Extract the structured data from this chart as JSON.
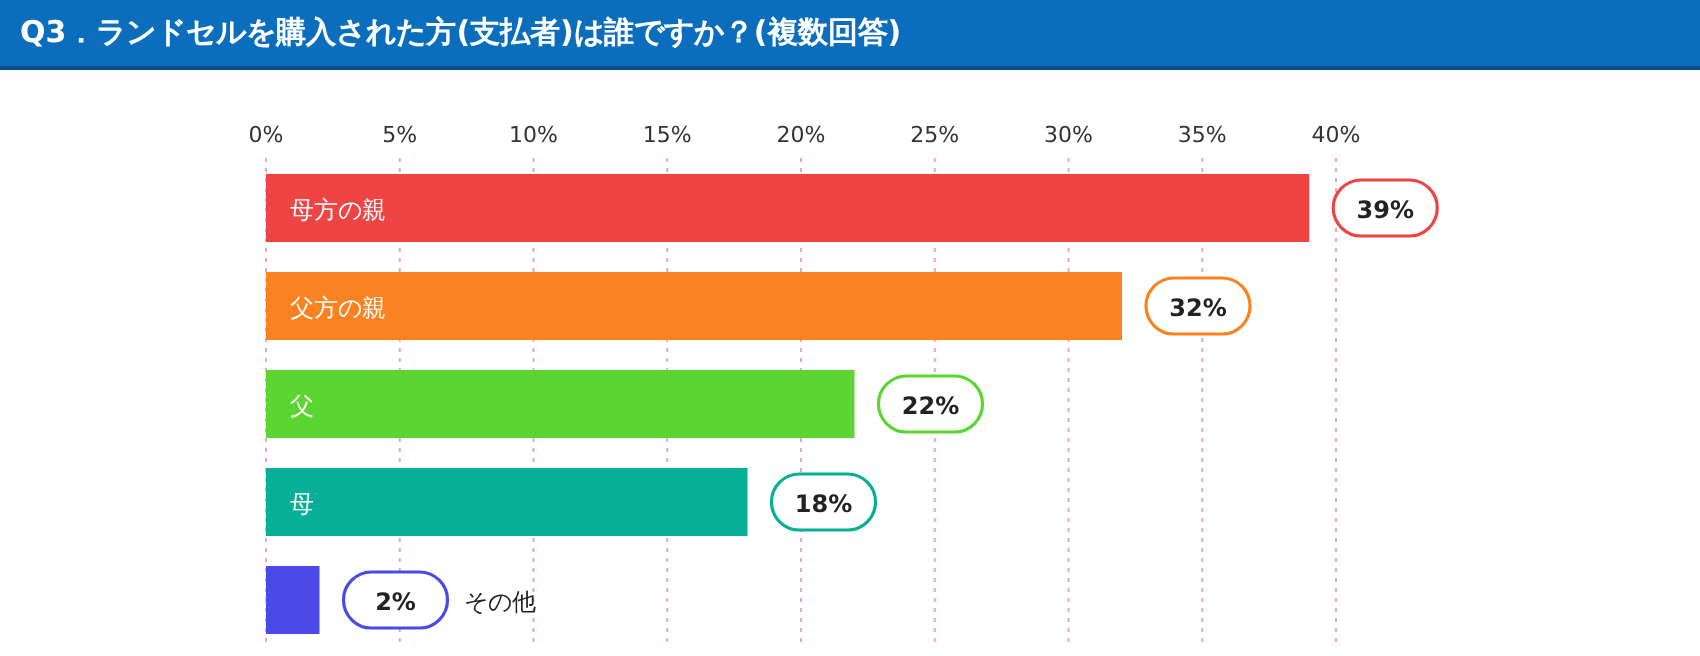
{
  "chart_data": {
    "type": "bar",
    "orientation": "horizontal",
    "title": "Q3．ランドセルを購入された方(支払者)は誰ですか？(複数回答)",
    "categories": [
      "母方の親",
      "父方の親",
      "父",
      "母",
      "その他"
    ],
    "values": [
      39,
      32,
      22,
      18,
      2
    ],
    "colors": [
      "#ee4444",
      "#fb8220",
      "#5bd532",
      "#05b096",
      "#4a4ae8"
    ],
    "value_labels": [
      "39%",
      "32%",
      "22%",
      "18%",
      "2%"
    ],
    "xlim": [
      0,
      40
    ],
    "xticks": [
      {
        "value": 0,
        "label": "0%"
      },
      {
        "value": 5,
        "label": "5%"
      },
      {
        "value": 10,
        "label": "10%"
      },
      {
        "value": 15,
        "label": "15%"
      },
      {
        "value": 20,
        "label": "20%"
      },
      {
        "value": 25,
        "label": "25%"
      },
      {
        "value": 30,
        "label": "30%"
      },
      {
        "value": 35,
        "label": "35%"
      },
      {
        "value": 40,
        "label": "40%"
      }
    ],
    "grid": "x",
    "legend": false
  }
}
